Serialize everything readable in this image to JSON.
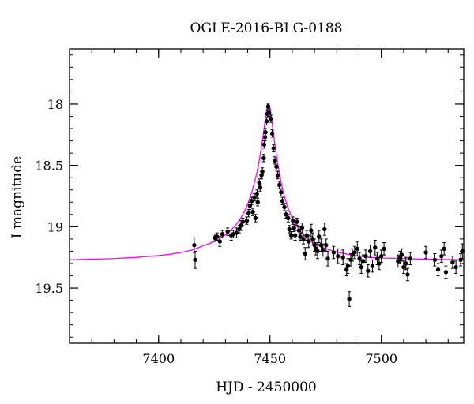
{
  "chart_data": {
    "type": "scatter",
    "title": "OGLE-2016-BLG-0188",
    "xlabel": "HJD - 2450000",
    "ylabel": "I magnitude",
    "xlim": [
      7360,
      7537
    ],
    "ylim": [
      19.95,
      17.55
    ],
    "y_inverted": true,
    "grid": false,
    "x_ticks": [
      {
        "value": 7400,
        "label": "7400"
      },
      {
        "value": 7450,
        "label": "7450"
      },
      {
        "value": 7500,
        "label": "7500"
      }
    ],
    "y_ticks": [
      {
        "value": 18,
        "label": "18"
      },
      {
        "value": 18.5,
        "label": "18.5"
      },
      {
        "value": 19,
        "label": "19"
      },
      {
        "value": 19.5,
        "label": "19.5"
      }
    ],
    "x_minor_step": 10,
    "y_minor_step": 0.1,
    "colors": {
      "points": "#000000",
      "model": "#ff00ff",
      "axes": "#000000"
    },
    "series": [
      {
        "kind": "points",
        "points": [
          [
            7416.0,
            19.15,
            0.06
          ],
          [
            7416.4,
            19.27,
            0.07
          ],
          [
            7425.2,
            19.09,
            0.03
          ],
          [
            7426.2,
            19.08,
            0.03
          ],
          [
            7427.5,
            19.12,
            0.04
          ],
          [
            7428.6,
            19.06,
            0.03
          ],
          [
            7431.0,
            19.04,
            0.03
          ],
          [
            7432.6,
            19.07,
            0.04
          ],
          [
            7433.6,
            19.06,
            0.03
          ],
          [
            7435.0,
            19.05,
            0.04
          ],
          [
            7436.2,
            19.02,
            0.03
          ],
          [
            7437.0,
            18.99,
            0.04
          ],
          [
            7437.8,
            18.96,
            0.03
          ],
          [
            7439.6,
            18.95,
            0.03
          ],
          [
            7440.4,
            18.89,
            0.03
          ],
          [
            7441.0,
            18.83,
            0.03
          ],
          [
            7441.8,
            18.79,
            0.03
          ],
          [
            7442.3,
            18.88,
            0.03
          ],
          [
            7443.0,
            18.76,
            0.03
          ],
          [
            7443.5,
            18.93,
            0.03
          ],
          [
            7444.2,
            18.73,
            0.03
          ],
          [
            7444.5,
            18.8,
            0.03
          ],
          [
            7445.2,
            18.64,
            0.03
          ],
          [
            7445.6,
            18.68,
            0.03
          ],
          [
            7446.2,
            18.58,
            0.03
          ],
          [
            7446.6,
            18.55,
            0.03
          ],
          [
            7447.2,
            18.44,
            0.03
          ],
          [
            7447.4,
            18.33,
            0.03
          ],
          [
            7447.8,
            18.27,
            0.03
          ],
          [
            7448.0,
            18.23,
            0.03
          ],
          [
            7448.5,
            18.14,
            0.03
          ],
          [
            7448.8,
            18.08,
            0.03
          ],
          [
            7449.2,
            18.02,
            0.02
          ],
          [
            7449.6,
            18.07,
            0.03
          ],
          [
            7450.4,
            18.12,
            0.03
          ],
          [
            7451.0,
            18.24,
            0.03
          ],
          [
            7451.6,
            18.36,
            0.03
          ],
          [
            7452.2,
            18.46,
            0.03
          ],
          [
            7452.9,
            18.51,
            0.03
          ],
          [
            7453.5,
            18.58,
            0.03
          ],
          [
            7454.2,
            18.66,
            0.03
          ],
          [
            7455.0,
            18.72,
            0.03
          ],
          [
            7455.6,
            18.79,
            0.03
          ],
          [
            7456.5,
            18.84,
            0.03
          ],
          [
            7457.2,
            18.9,
            0.03
          ],
          [
            7458.2,
            18.93,
            0.03
          ],
          [
            7458.7,
            19.02,
            0.03
          ],
          [
            7459.5,
            19.07,
            0.03
          ],
          [
            7460.3,
            18.95,
            0.03
          ],
          [
            7460.8,
            19.01,
            0.03
          ],
          [
            7461.3,
            19.07,
            0.04
          ],
          [
            7462.1,
            18.96,
            0.03
          ],
          [
            7463.0,
            19.03,
            0.03
          ],
          [
            7463.6,
            19.08,
            0.03
          ],
          [
            7464.4,
            19.01,
            0.04
          ],
          [
            7465.0,
            19.1,
            0.04
          ],
          [
            7465.8,
            19.22,
            0.05
          ],
          [
            7466.5,
            19.07,
            0.04
          ],
          [
            7467.4,
            19.12,
            0.05
          ],
          [
            7468.5,
            19.03,
            0.05
          ],
          [
            7469.2,
            19.1,
            0.05
          ],
          [
            7470.0,
            19.15,
            0.05
          ],
          [
            7470.6,
            19.18,
            0.05
          ],
          [
            7471.4,
            19.2,
            0.06
          ],
          [
            7472.0,
            19.08,
            0.05
          ],
          [
            7473.0,
            19.15,
            0.05
          ],
          [
            7473.8,
            19.19,
            0.05
          ],
          [
            7474.5,
            19.02,
            0.05
          ],
          [
            7475.2,
            19.15,
            0.05
          ],
          [
            7476.0,
            19.26,
            0.06
          ],
          [
            7478.6,
            19.21,
            0.05
          ],
          [
            7480.5,
            19.24,
            0.06
          ],
          [
            7482.8,
            19.25,
            0.06
          ],
          [
            7484.4,
            19.35,
            0.05
          ],
          [
            7485.0,
            19.32,
            0.06
          ],
          [
            7485.6,
            19.59,
            0.06
          ],
          [
            7486.3,
            19.27,
            0.05
          ],
          [
            7487.0,
            19.23,
            0.05
          ],
          [
            7488.0,
            19.21,
            0.05
          ],
          [
            7489.2,
            19.18,
            0.06
          ],
          [
            7490.2,
            19.26,
            0.05
          ],
          [
            7491.0,
            19.33,
            0.05
          ],
          [
            7491.8,
            19.28,
            0.05
          ],
          [
            7493.0,
            19.24,
            0.05
          ],
          [
            7494.0,
            19.36,
            0.05
          ],
          [
            7495.0,
            19.2,
            0.05
          ],
          [
            7496.0,
            19.32,
            0.05
          ],
          [
            7497.2,
            19.17,
            0.06
          ],
          [
            7498.2,
            19.26,
            0.05
          ],
          [
            7499.0,
            19.3,
            0.05
          ],
          [
            7500.0,
            19.24,
            0.05
          ],
          [
            7501.2,
            19.18,
            0.05
          ],
          [
            7507.5,
            19.28,
            0.05
          ],
          [
            7508.4,
            19.25,
            0.05
          ],
          [
            7509.2,
            19.23,
            0.05
          ],
          [
            7510.0,
            19.33,
            0.05
          ],
          [
            7511.0,
            19.3,
            0.05
          ],
          [
            7511.8,
            19.39,
            0.05
          ],
          [
            7513.0,
            19.26,
            0.05
          ],
          [
            7520.0,
            19.21,
            0.05
          ],
          [
            7524.0,
            19.27,
            0.05
          ],
          [
            7525.5,
            19.35,
            0.05
          ],
          [
            7527.0,
            19.24,
            0.05
          ],
          [
            7528.2,
            19.18,
            0.05
          ],
          [
            7529.0,
            19.37,
            0.05
          ],
          [
            7532.0,
            19.29,
            0.05
          ],
          [
            7533.5,
            19.33,
            0.05
          ],
          [
            7535.6,
            19.27,
            0.05
          ],
          [
            7536.4,
            19.2,
            0.06
          ]
        ]
      },
      {
        "kind": "model",
        "x": [
          7360,
          7370,
          7380,
          7390,
          7400,
          7405,
          7410,
          7415,
          7418,
          7420,
          7423,
          7426,
          7428,
          7430,
          7432,
          7434,
          7436,
          7438,
          7440,
          7442,
          7444,
          7445,
          7446,
          7447,
          7448,
          7449,
          7450,
          7451,
          7452,
          7453,
          7454,
          7455,
          7456,
          7458,
          7460,
          7462,
          7464,
          7466,
          7468,
          7470,
          7473,
          7476,
          7480,
          7485,
          7490,
          7495,
          7500,
          7510,
          7520,
          7537
        ],
        "y": [
          19.27,
          19.265,
          19.26,
          19.25,
          19.235,
          19.225,
          19.21,
          19.19,
          19.17,
          19.155,
          19.135,
          19.11,
          19.09,
          19.065,
          19.035,
          19.0,
          18.955,
          18.895,
          18.815,
          18.71,
          18.57,
          18.48,
          18.37,
          18.245,
          18.11,
          18.0,
          18.03,
          18.16,
          18.3,
          18.43,
          18.545,
          18.64,
          18.72,
          18.845,
          18.93,
          18.995,
          19.045,
          19.085,
          19.115,
          19.14,
          19.165,
          19.185,
          19.205,
          19.225,
          19.24,
          19.25,
          19.255,
          19.26,
          19.265,
          19.27
        ]
      }
    ]
  }
}
